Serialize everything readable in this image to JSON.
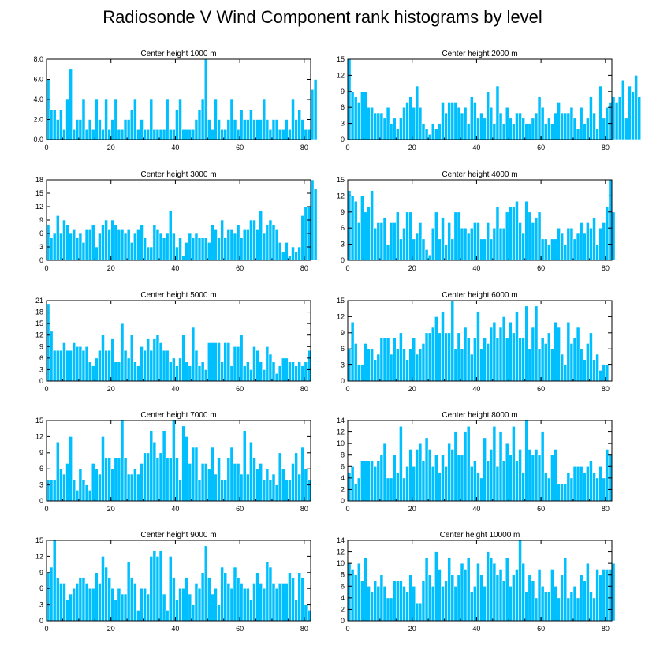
{
  "title": "Radiosonde V Wind Component rank histograms by level",
  "colors": {
    "bar": "#00BFFF",
    "bar_stroke": "#ffffff",
    "axis": "#000000"
  },
  "chart_data": [
    {
      "type": "bar",
      "title": "Center height 1000 m",
      "xlim": [
        0,
        82
      ],
      "ylim": [
        0,
        8
      ],
      "yticks": [
        "0.0",
        "2.0",
        "4.0",
        "6.0",
        "8.0"
      ],
      "xticks": [
        "0",
        "20",
        "40",
        "60",
        "80"
      ],
      "values": [
        6,
        3,
        3,
        2,
        3,
        1,
        4,
        7,
        1,
        2,
        2,
        4,
        1,
        2,
        1,
        4,
        2,
        1,
        4,
        1,
        2,
        4,
        1,
        1,
        2,
        2,
        3,
        4,
        1,
        2,
        1,
        1,
        4,
        1,
        1,
        1,
        1,
        4,
        1,
        1,
        3,
        4,
        1,
        1,
        1,
        1,
        2,
        3,
        4,
        8,
        2,
        1,
        4,
        2,
        1,
        1,
        2,
        4,
        2,
        1,
        3,
        2,
        2,
        3,
        2,
        2,
        2,
        4,
        2,
        1,
        2,
        2,
        1,
        1,
        2,
        1,
        4,
        2,
        3,
        2,
        1,
        1,
        5,
        6
      ]
    },
    {
      "type": "bar",
      "title": "Center height 2000 m",
      "xlim": [
        0,
        82
      ],
      "ylim": [
        0,
        15
      ],
      "yticks": [
        "0",
        "3",
        "6",
        "9",
        "12",
        "15"
      ],
      "xticks": [
        "0",
        "20",
        "40",
        "60",
        "80"
      ],
      "values": [
        15,
        9,
        8,
        7,
        9,
        9,
        6,
        6,
        5,
        5,
        5,
        4,
        6,
        3,
        4,
        2,
        4,
        6,
        7,
        8,
        6,
        10,
        6,
        3,
        2,
        1,
        3,
        2,
        3,
        7,
        5,
        7,
        7,
        7,
        6,
        5,
        6,
        3,
        8,
        7,
        4,
        5,
        4,
        9,
        6,
        3,
        10,
        5,
        3,
        6,
        4,
        3,
        5,
        5,
        4,
        3,
        3,
        4,
        5,
        8,
        6,
        3,
        4,
        3,
        5,
        7,
        5,
        5,
        5,
        6,
        4,
        2,
        6,
        3,
        4,
        8,
        5,
        2,
        10,
        4,
        6,
        7,
        8,
        7,
        8,
        11,
        4,
        10,
        9,
        12,
        8
      ]
    },
    {
      "type": "bar",
      "title": "Center height 3000 m",
      "xlim": [
        0,
        82
      ],
      "ylim": [
        0,
        18
      ],
      "yticks": [
        "0",
        "3",
        "6",
        "9",
        "12",
        "15",
        "18"
      ],
      "xticks": [
        "0",
        "20",
        "40",
        "60",
        "80"
      ],
      "values": [
        8,
        5,
        6,
        10,
        6,
        9,
        8,
        6,
        7,
        5,
        6,
        4,
        7,
        7,
        8,
        3,
        6,
        8,
        9,
        7,
        9,
        8,
        7,
        7,
        6,
        7,
        4,
        6,
        7,
        8,
        5,
        3,
        3,
        8,
        7,
        6,
        5,
        6,
        11,
        6,
        3,
        5,
        1,
        4,
        6,
        5,
        6,
        5,
        5,
        5,
        4,
        8,
        7,
        5,
        9,
        5,
        7,
        7,
        6,
        8,
        5,
        7,
        7,
        9,
        9,
        7,
        11,
        6,
        8,
        9,
        8,
        7,
        4,
        2,
        4,
        1,
        3,
        2,
        3,
        10,
        12,
        12,
        18,
        16
      ]
    },
    {
      "type": "bar",
      "title": "Center height 4000 m",
      "xlim": [
        0,
        82
      ],
      "ylim": [
        0,
        15
      ],
      "yticks": [
        "0",
        "3",
        "6",
        "9",
        "12",
        "15"
      ],
      "xticks": [
        "0",
        "20",
        "40",
        "60",
        "80"
      ],
      "values": [
        13,
        12,
        11,
        7,
        12,
        9,
        10,
        13,
        6,
        7,
        7,
        8,
        3,
        7,
        7,
        9,
        4,
        6,
        9,
        9,
        4,
        5,
        7,
        4,
        2,
        1,
        6,
        9,
        4,
        8,
        3,
        7,
        4,
        9,
        9,
        6,
        6,
        5,
        6,
        7,
        7,
        4,
        4,
        7,
        4,
        6,
        10,
        6,
        6,
        9,
        10,
        10,
        11,
        7,
        5,
        11,
        9,
        7,
        8,
        9,
        4,
        4,
        3,
        4,
        4,
        6,
        5,
        3,
        6,
        6,
        4,
        5,
        7,
        5,
        7,
        6,
        8,
        3,
        6,
        7,
        10,
        15,
        9
      ]
    },
    {
      "type": "bar",
      "title": "Center height 5000 m",
      "xlim": [
        0,
        82
      ],
      "ylim": [
        0,
        21
      ],
      "yticks": [
        "0",
        "3",
        "6",
        "9",
        "12",
        "15",
        "18",
        "21"
      ],
      "xticks": [
        "0",
        "20",
        "40",
        "60",
        "80"
      ],
      "values": [
        20,
        13,
        8,
        8,
        8,
        10,
        8,
        8,
        10,
        9,
        9,
        8,
        9,
        5,
        4,
        6,
        8,
        12,
        8,
        8,
        11,
        5,
        5,
        15,
        8,
        6,
        12,
        5,
        4,
        9,
        8,
        11,
        8,
        11,
        12,
        10,
        8,
        8,
        5,
        6,
        4,
        6,
        12,
        5,
        4,
        14,
        8,
        4,
        5,
        3,
        10,
        10,
        10,
        10,
        5,
        10,
        10,
        4,
        9,
        9,
        12,
        4,
        5,
        3,
        9,
        8,
        5,
        3,
        9,
        7,
        5,
        2,
        4,
        6,
        6,
        5,
        5,
        4,
        5,
        4,
        5,
        8
      ]
    },
    {
      "type": "bar",
      "title": "Center height 6000 m",
      "xlim": [
        0,
        82
      ],
      "ylim": [
        0,
        15
      ],
      "yticks": [
        "0",
        "3",
        "6",
        "9",
        "12",
        "15"
      ],
      "xticks": [
        "0",
        "20",
        "40",
        "60",
        "80"
      ],
      "values": [
        6,
        11,
        7,
        3,
        3,
        7,
        6,
        6,
        4,
        5,
        8,
        8,
        8,
        5,
        8,
        6,
        9,
        6,
        4,
        6,
        8,
        5,
        6,
        7,
        9,
        9,
        10,
        12,
        9,
        13,
        9,
        9,
        15,
        6,
        9,
        6,
        10,
        8,
        5,
        8,
        13,
        6,
        8,
        7,
        10,
        11,
        8,
        10,
        12,
        8,
        11,
        9,
        13,
        8,
        8,
        14,
        6,
        10,
        14,
        6,
        8,
        7,
        9,
        6,
        11,
        10,
        5,
        3,
        11,
        7,
        8,
        10,
        6,
        4,
        7,
        9,
        4,
        5,
        2,
        3,
        3
      ]
    },
    {
      "type": "bar",
      "title": "Center height 7000 m",
      "xlim": [
        0,
        82
      ],
      "ylim": [
        0,
        15
      ],
      "yticks": [
        "0",
        "3",
        "6",
        "9",
        "12",
        "15"
      ],
      "xticks": [
        "0",
        "20",
        "40",
        "60",
        "80"
      ],
      "values": [
        4,
        4,
        4,
        11,
        6,
        5,
        7,
        12,
        4,
        2,
        6,
        4,
        3,
        2,
        7,
        6,
        5,
        12,
        8,
        8,
        6,
        8,
        8,
        15,
        8,
        5,
        5,
        6,
        5,
        7,
        9,
        9,
        13,
        11,
        8,
        9,
        13,
        8,
        8,
        15,
        8,
        4,
        14,
        12,
        7,
        10,
        10,
        4,
        7,
        7,
        6,
        10,
        5,
        8,
        4,
        4,
        8,
        10,
        7,
        7,
        5,
        13,
        5,
        11,
        8,
        6,
        7,
        4,
        6,
        4,
        5,
        3,
        9,
        6,
        4,
        4,
        7,
        9,
        5,
        10,
        6,
        4
      ]
    },
    {
      "type": "bar",
      "title": "Center height 8000 m",
      "xlim": [
        0,
        82
      ],
      "ylim": [
        0,
        14
      ],
      "yticks": [
        "0",
        "2",
        "4",
        "6",
        "8",
        "10",
        "12",
        "14"
      ],
      "xticks": [
        "0",
        "20",
        "40",
        "60",
        "80"
      ],
      "values": [
        5,
        6,
        3,
        4,
        7,
        7,
        7,
        7,
        6,
        7,
        8,
        10,
        4,
        4,
        8,
        5,
        13,
        4,
        6,
        9,
        6,
        9,
        10,
        7,
        11,
        9,
        6,
        8,
        5,
        8,
        6,
        10,
        9,
        12,
        8,
        8,
        12,
        13,
        6,
        7,
        5,
        4,
        11,
        7,
        9,
        13,
        6,
        12,
        7,
        10,
        8,
        13,
        7,
        9,
        5,
        14,
        9,
        8,
        9,
        8,
        12,
        5,
        4,
        8,
        9,
        3,
        3,
        3,
        5,
        4,
        6,
        6,
        6,
        5,
        6,
        7,
        5,
        4,
        6,
        4,
        9,
        8
      ]
    },
    {
      "type": "bar",
      "title": "Center height 9000 m",
      "xlim": [
        0,
        82
      ],
      "ylim": [
        0,
        15
      ],
      "yticks": [
        "0",
        "3",
        "6",
        "9",
        "12",
        "15"
      ],
      "xticks": [
        "0",
        "20",
        "40",
        "60",
        "80"
      ],
      "values": [
        9,
        10,
        15,
        8,
        7,
        7,
        4,
        5,
        6,
        7,
        8,
        8,
        7,
        6,
        6,
        9,
        7,
        12,
        10,
        8,
        6,
        4,
        6,
        5,
        5,
        11,
        8,
        7,
        2,
        6,
        6,
        5,
        12,
        13,
        12,
        13,
        5,
        2,
        12,
        8,
        4,
        6,
        6,
        8,
        5,
        3,
        7,
        6,
        9,
        14,
        8,
        5,
        6,
        3,
        10,
        9,
        7,
        6,
        10,
        8,
        7,
        6,
        6,
        4,
        7,
        9,
        7,
        6,
        11,
        10,
        7,
        6,
        7,
        7,
        7,
        9,
        8,
        4,
        9,
        8,
        3,
        2
      ]
    },
    {
      "type": "bar",
      "title": "Center height 10000 m",
      "xlim": [
        0,
        82
      ],
      "ylim": [
        0,
        14
      ],
      "yticks": [
        "0",
        "2",
        "4",
        "6",
        "8",
        "10",
        "12",
        "14"
      ],
      "xticks": [
        "0",
        "20",
        "40",
        "60",
        "80"
      ],
      "values": [
        10,
        9,
        8,
        10,
        7,
        11,
        6,
        5,
        7,
        6,
        8,
        6,
        4,
        4,
        7,
        7,
        7,
        6,
        5,
        8,
        6,
        3,
        3,
        7,
        11,
        8,
        6,
        12,
        9,
        6,
        7,
        11,
        8,
        6,
        8,
        10,
        9,
        11,
        5,
        6,
        10,
        8,
        6,
        12,
        11,
        10,
        8,
        9,
        7,
        11,
        6,
        8,
        9,
        14,
        10,
        5,
        8,
        7,
        4,
        9,
        6,
        5,
        5,
        9,
        6,
        4,
        8,
        11,
        4,
        5,
        6,
        4,
        8,
        7,
        10,
        5,
        4,
        9,
        8,
        9,
        9,
        9,
        10
      ]
    }
  ]
}
